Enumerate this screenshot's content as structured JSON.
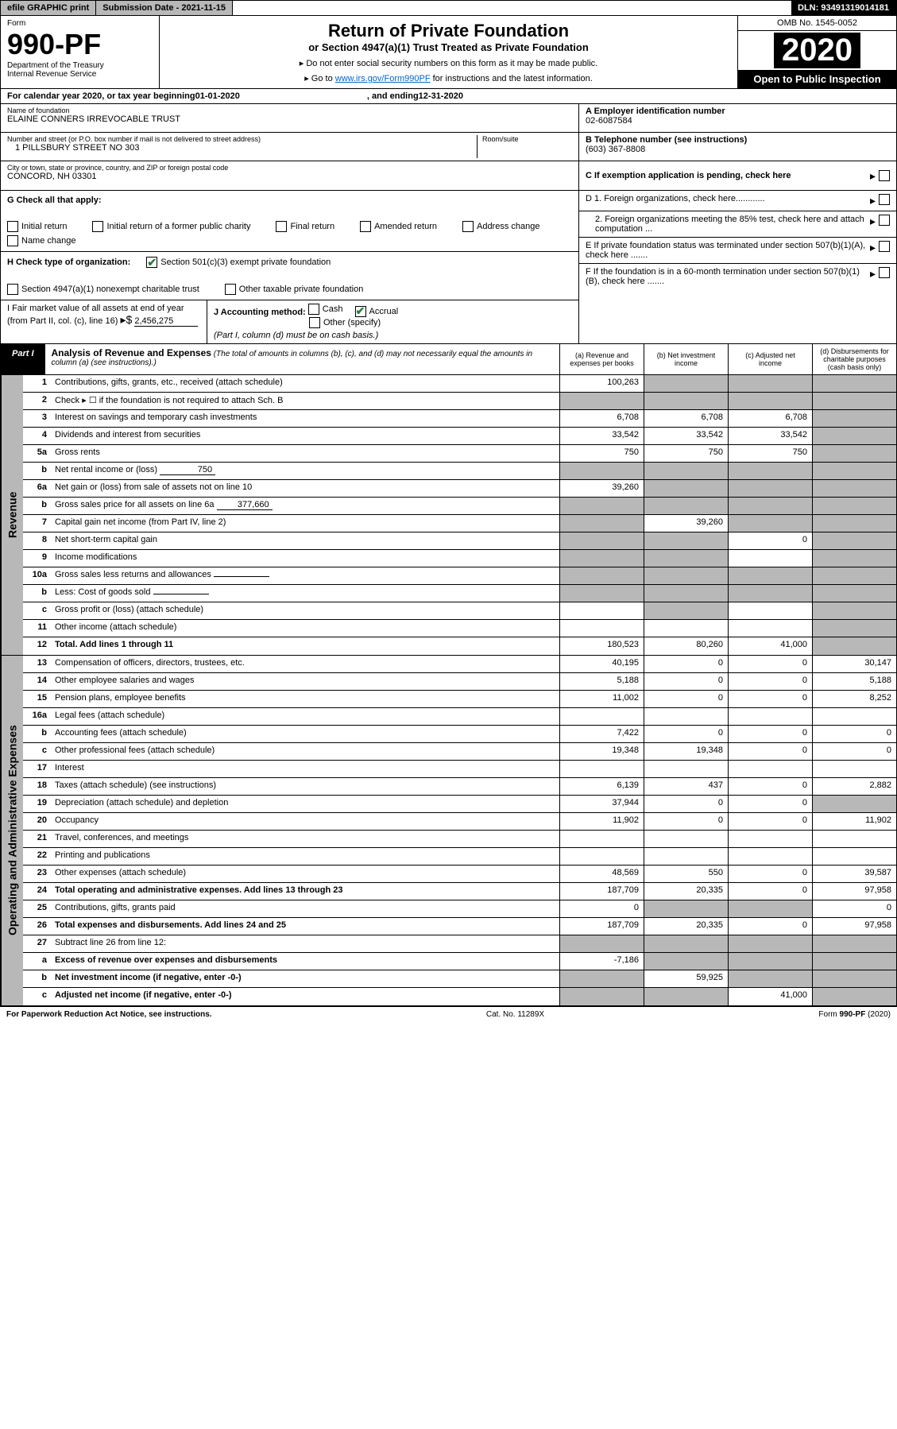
{
  "header": {
    "efile": "efile GRAPHIC print",
    "subdate_label": "Submission Date - ",
    "subdate": "2021-11-15",
    "dln_label": "DLN: ",
    "dln": "93491319014181"
  },
  "form": {
    "form_label": "Form",
    "num": "990-PF",
    "dept": "Department of the Treasury",
    "irs": "Internal Revenue Service",
    "title": "Return of Private Foundation",
    "subtitle": "or Section 4947(a)(1) Trust Treated as Private Foundation",
    "instr1": "▸ Do not enter social security numbers on this form as it may be made public.",
    "instr2_pre": "▸ Go to ",
    "instr2_link": "www.irs.gov/Form990PF",
    "instr2_post": " for instructions and the latest information.",
    "omb": "OMB No. 1545-0052",
    "year": "2020",
    "opi": "Open to Public Inspection"
  },
  "cal": {
    "text1": "For calendar year 2020, or tax year beginning ",
    "begin": "01-01-2020",
    "text2": ", and ending ",
    "end": "12-31-2020"
  },
  "info": {
    "name_label": "Name of foundation",
    "name": "ELAINE CONNERS IRREVOCABLE TRUST",
    "addr_label": "Number and street (or P.O. box number if mail is not delivered to street address)",
    "addr": "1 PILLSBURY STREET NO 303",
    "room_label": "Room/suite",
    "city_label": "City or town, state or province, country, and ZIP or foreign postal code",
    "city": "CONCORD, NH  03301",
    "a_label": "A Employer identification number",
    "a_val": "02-6087584",
    "b_label": "B Telephone number (see instructions)",
    "b_val": "(603) 367-8808",
    "c_label": "C If exemption application is pending, check here"
  },
  "g": {
    "label": "G Check all that apply:",
    "opts": [
      "Initial return",
      "Initial return of a former public charity",
      "Final return",
      "Amended return",
      "Address change",
      "Name change"
    ]
  },
  "h": {
    "label": "H Check type of organization:",
    "opt1": "Section 501(c)(3) exempt private foundation",
    "opt2": "Section 4947(a)(1) nonexempt charitable trust",
    "opt3": "Other taxable private foundation"
  },
  "i": {
    "label": "I Fair market value of all assets at end of year (from Part II, col. (c), line 16)",
    "val": "2,456,275"
  },
  "j": {
    "label": "J Accounting method:",
    "cash": "Cash",
    "accrual": "Accrual",
    "other": "Other (specify)",
    "note": "(Part I, column (d) must be on cash basis.)"
  },
  "d": {
    "d1": "D 1. Foreign organizations, check here............",
    "d2": "2. Foreign organizations meeting the 85% test, check here and attach computation ...",
    "e": "E  If private foundation status was terminated under section 507(b)(1)(A), check here .......",
    "f": "F  If the foundation is in a 60-month termination under section 507(b)(1)(B), check here ......."
  },
  "part1": {
    "tab": "Part I",
    "title": "Analysis of Revenue and Expenses",
    "note": "(The total of amounts in columns (b), (c), and (d) may not necessarily equal the amounts in column (a) (see instructions).)",
    "cols": {
      "a": "(a) Revenue and expenses per books",
      "b": "(b) Net investment income",
      "c": "(c) Adjusted net income",
      "d": "(d) Disbursements for charitable purposes (cash basis only)"
    }
  },
  "side_labels": {
    "rev": "Revenue",
    "exp": "Operating and Administrative Expenses"
  },
  "rows": [
    {
      "n": "1",
      "d": "Contributions, gifts, grants, etc., received (attach schedule)",
      "a": "100,263",
      "shade_bcd": true
    },
    {
      "n": "2",
      "d": "Check ▸ ☐ if the foundation is not required to attach Sch. B",
      "dots": true,
      "shade_all": true
    },
    {
      "n": "3",
      "d": "Interest on savings and temporary cash investments",
      "a": "6,708",
      "b": "6,708",
      "c": "6,708",
      "shade_d": true
    },
    {
      "n": "4",
      "d": "Dividends and interest from securities",
      "dots": true,
      "a": "33,542",
      "b": "33,542",
      "c": "33,542",
      "shade_d": true
    },
    {
      "n": "5a",
      "d": "Gross rents",
      "dots": true,
      "a": "750",
      "b": "750",
      "c": "750",
      "shade_d": true
    },
    {
      "n": "b",
      "d": "Net rental income or (loss)",
      "inline": "750",
      "shade_all": true
    },
    {
      "n": "6a",
      "d": "Net gain or (loss) from sale of assets not on line 10",
      "a": "39,260",
      "shade_bcd": true
    },
    {
      "n": "b",
      "d": "Gross sales price for all assets on line 6a",
      "inline": "377,660",
      "shade_all": true
    },
    {
      "n": "7",
      "d": "Capital gain net income (from Part IV, line 2)",
      "dots": true,
      "b": "39,260",
      "shade_a": true,
      "shade_cd": true
    },
    {
      "n": "8",
      "d": "Net short-term capital gain",
      "dots": true,
      "c": "0",
      "shade_ab": true,
      "shade_d": true
    },
    {
      "n": "9",
      "d": "Income modifications",
      "dots": true,
      "shade_ab": true,
      "shade_d": true
    },
    {
      "n": "10a",
      "d": "Gross sales less returns and allowances",
      "inline": "",
      "shade_all": true
    },
    {
      "n": "b",
      "d": "Less: Cost of goods sold",
      "dots": true,
      "inline": "",
      "shade_all": true
    },
    {
      "n": "c",
      "d": "Gross profit or (loss) (attach schedule)",
      "dots": true,
      "shade_b": true,
      "shade_d": true
    },
    {
      "n": "11",
      "d": "Other income (attach schedule)",
      "dots": true,
      "shade_d": true
    },
    {
      "n": "12",
      "d": "Total. Add lines 1 through 11",
      "dots": true,
      "bold": true,
      "a": "180,523",
      "b": "80,260",
      "c": "41,000",
      "shade_d": true
    }
  ],
  "exp_rows": [
    {
      "n": "13",
      "d": "Compensation of officers, directors, trustees, etc.",
      "a": "40,195",
      "b": "0",
      "c": "0",
      "dd": "30,147"
    },
    {
      "n": "14",
      "d": "Other employee salaries and wages",
      "dots": true,
      "a": "5,188",
      "b": "0",
      "c": "0",
      "dd": "5,188"
    },
    {
      "n": "15",
      "d": "Pension plans, employee benefits",
      "dots": true,
      "a": "11,002",
      "b": "0",
      "c": "0",
      "dd": "8,252"
    },
    {
      "n": "16a",
      "d": "Legal fees (attach schedule)",
      "dots": true
    },
    {
      "n": "b",
      "d": "Accounting fees (attach schedule)",
      "dots": true,
      "a": "7,422",
      "b": "0",
      "c": "0",
      "dd": "0"
    },
    {
      "n": "c",
      "d": "Other professional fees (attach schedule)",
      "dots": true,
      "a": "19,348",
      "b": "19,348",
      "c": "0",
      "dd": "0"
    },
    {
      "n": "17",
      "d": "Interest",
      "dots": true
    },
    {
      "n": "18",
      "d": "Taxes (attach schedule) (see instructions)",
      "dots": true,
      "a": "6,139",
      "b": "437",
      "c": "0",
      "dd": "2,882"
    },
    {
      "n": "19",
      "d": "Depreciation (attach schedule) and depletion",
      "dots": true,
      "a": "37,944",
      "b": "0",
      "c": "0",
      "shade_d": true
    },
    {
      "n": "20",
      "d": "Occupancy",
      "dots": true,
      "a": "11,902",
      "b": "0",
      "c": "0",
      "dd": "11,902"
    },
    {
      "n": "21",
      "d": "Travel, conferences, and meetings",
      "dots": true
    },
    {
      "n": "22",
      "d": "Printing and publications",
      "dots": true
    },
    {
      "n": "23",
      "d": "Other expenses (attach schedule)",
      "dots": true,
      "a": "48,569",
      "b": "550",
      "c": "0",
      "dd": "39,587"
    },
    {
      "n": "24",
      "d": "Total operating and administrative expenses. Add lines 13 through 23",
      "dots": true,
      "bold": true,
      "a": "187,709",
      "b": "20,335",
      "c": "0",
      "dd": "97,958"
    },
    {
      "n": "25",
      "d": "Contributions, gifts, grants paid",
      "dots": true,
      "a": "0",
      "shade_bc": true,
      "dd": "0"
    },
    {
      "n": "26",
      "d": "Total expenses and disbursements. Add lines 24 and 25",
      "bold": true,
      "a": "187,709",
      "b": "20,335",
      "c": "0",
      "dd": "97,958"
    },
    {
      "n": "27",
      "d": "Subtract line 26 from line 12:",
      "shade_all": true
    },
    {
      "n": "a",
      "d": "Excess of revenue over expenses and disbursements",
      "bold": true,
      "a": "-7,186",
      "shade_bcd": true
    },
    {
      "n": "b",
      "d": "Net investment income (if negative, enter -0-)",
      "bold": true,
      "b": "59,925",
      "shade_a": true,
      "shade_cd": true
    },
    {
      "n": "c",
      "d": "Adjusted net income (if negative, enter -0-)",
      "dots": true,
      "bold": true,
      "c": "41,000",
      "shade_ab": true,
      "shade_d": true
    }
  ],
  "footer": {
    "left": "For Paperwork Reduction Act Notice, see instructions.",
    "mid": "Cat. No. 11289X",
    "right": "Form 990-PF (2020)"
  }
}
